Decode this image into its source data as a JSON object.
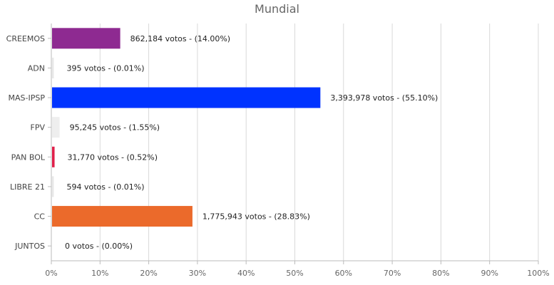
{
  "chart_data": {
    "type": "bar",
    "orientation": "horizontal",
    "title": "Mundial",
    "categories": [
      "CREEMOS",
      "ADN",
      "MAS-IPSP",
      "FPV",
      "PAN BOL",
      "LIBRE 21",
      "CC",
      "JUNTOS"
    ],
    "values": [
      14.0,
      0.01,
      55.1,
      1.55,
      0.52,
      0.01,
      28.83,
      0.0
    ],
    "value_unit": "%",
    "data_labels": [
      "862,184 votos - (14.00%)",
      "395 votos - (0.01%)",
      "3,393,978 votos - (55.10%)",
      "95,245 votos - (1.55%)",
      "31,770 votos - (0.52%)",
      "594 votos - (0.01%)",
      "1,775,943 votos - (28.83%)",
      "0 votos - (0.00%)"
    ],
    "colors": [
      "#8e2a91",
      "#e8e8e8",
      "#0033ff",
      "#eeeeee",
      "#e0204a",
      "#e8e8e8",
      "#eb6a2b",
      "#e8e8e8"
    ],
    "xlim": [
      0,
      100
    ],
    "x_ticks": [
      "0%",
      "10%",
      "20%",
      "30%",
      "40%",
      "50%",
      "60%",
      "70%",
      "80%",
      "90%",
      "100%"
    ],
    "grid": true,
    "legend": "none"
  }
}
